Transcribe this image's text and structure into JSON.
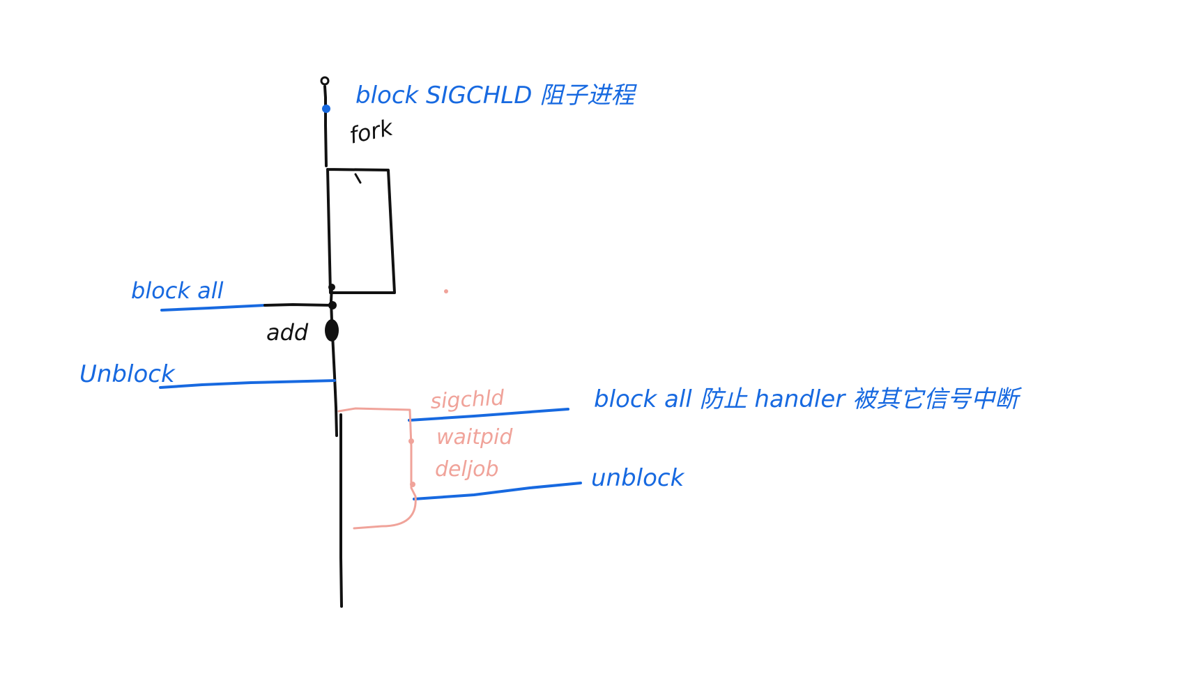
{
  "colors": {
    "black": "#111111",
    "blue": "#1769e0",
    "pink": "#f0a39a"
  },
  "labels": {
    "block_sigchld": "block SIGCHLD 阻子进程",
    "fork": "fork",
    "block_all_1": "block all",
    "add": "add",
    "unblock_1": "Unblock",
    "sigchld": "sigchld",
    "waitpid": "waitpid",
    "deljob": "deljob",
    "block_all_2": "block all 防止 handler 被其它信号中断",
    "unblock_2": "unblock"
  }
}
